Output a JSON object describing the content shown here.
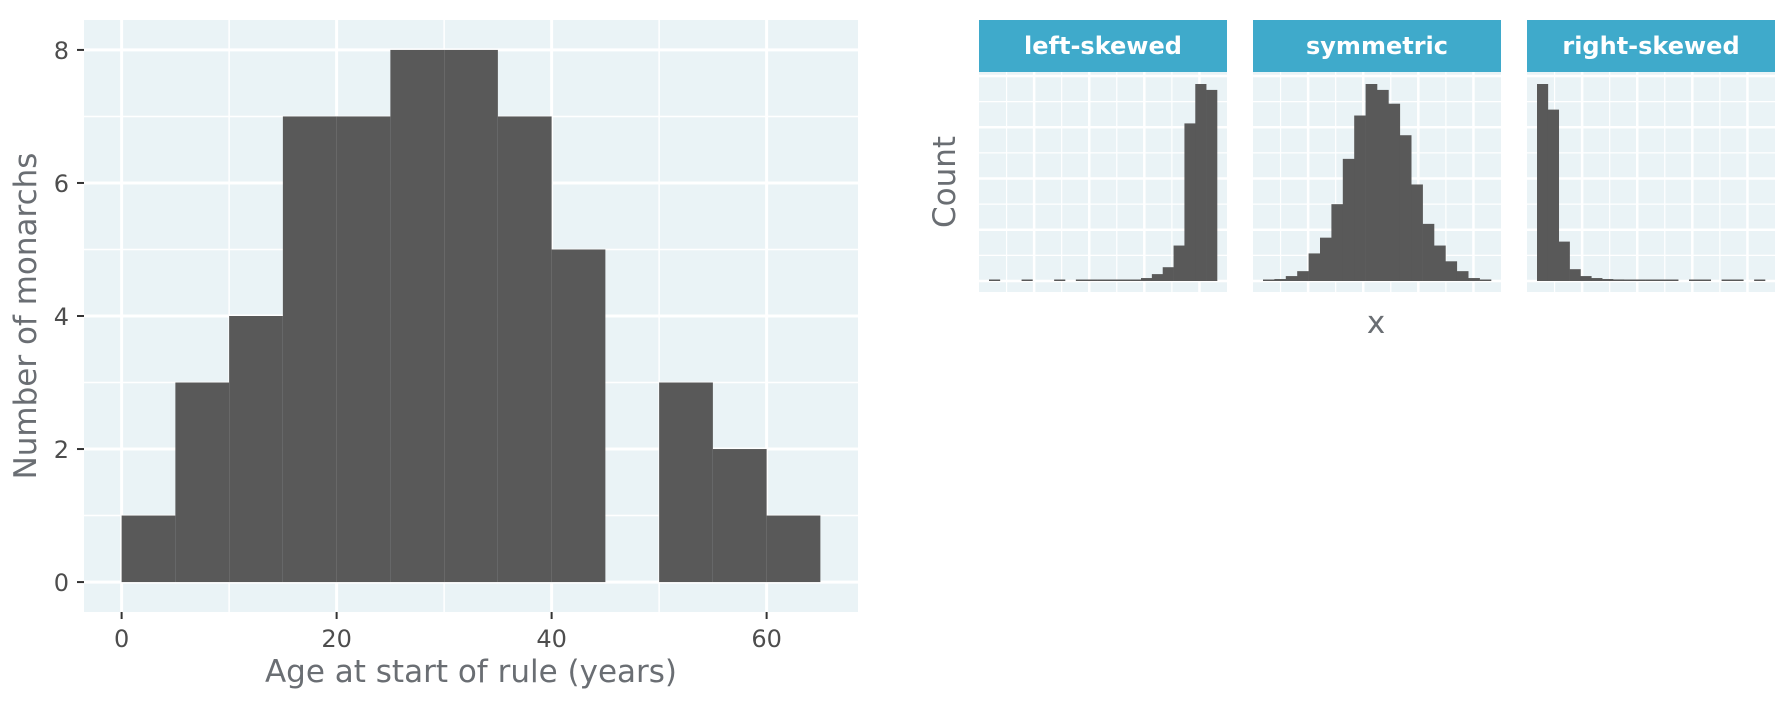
{
  "colors": {
    "panel_bg": "#eaf3f6",
    "grid": "#ffffff",
    "bar": "#595959",
    "strip": "#3faacb",
    "strip_text": "#ffffff",
    "axis_text": "#4d4d4d",
    "title_text": "#6a6e73"
  },
  "chart_data": [
    {
      "type": "bar",
      "subtype": "histogram",
      "xlabel": "Age at start of rule (years)",
      "ylabel": "Number of monarchs",
      "xlim": [
        -3.5,
        68.5
      ],
      "ylim": [
        -0.45,
        8.45
      ],
      "x_ticks": [
        0,
        20,
        40,
        60
      ],
      "y_ticks": [
        0,
        2,
        4,
        6,
        8
      ],
      "bin_width": 5,
      "bin_starts": [
        0,
        5,
        10,
        15,
        20,
        25,
        30,
        35,
        40,
        45,
        50,
        55,
        60
      ],
      "values": [
        1,
        3,
        4,
        7,
        7,
        8,
        8,
        7,
        5,
        0,
        3,
        2,
        1
      ],
      "grid": true
    },
    {
      "type": "bar",
      "subtype": "faceted-histogram",
      "xlabel": "x",
      "ylabel": "Count",
      "show_ticks": false,
      "grid": true,
      "panels": [
        {
          "label": "left-skewed",
          "values": [
            0.2,
            0,
            0,
            0.3,
            0,
            0,
            0.4,
            0,
            0.2,
            0.5,
            0.3,
            0.4,
            0.5,
            0.6,
            1.5,
            3.5,
            7,
            18,
            80,
            100,
            97
          ]
        },
        {
          "label": "symmetric",
          "values": [
            0.3,
            1,
            2.5,
            5,
            14,
            22,
            39,
            62,
            84,
            100,
            97,
            90,
            74,
            49,
            29,
            18,
            10,
            5,
            1.5,
            0.5
          ]
        },
        {
          "label": "right-skewed",
          "values": [
            100,
            87,
            20,
            6,
            2.5,
            1.5,
            1,
            0.8,
            0.6,
            0.4,
            0.4,
            0.3,
            0.3,
            0,
            0.2,
            0.3,
            0,
            0.2,
            0.2,
            0,
            0.2
          ]
        }
      ]
    }
  ]
}
